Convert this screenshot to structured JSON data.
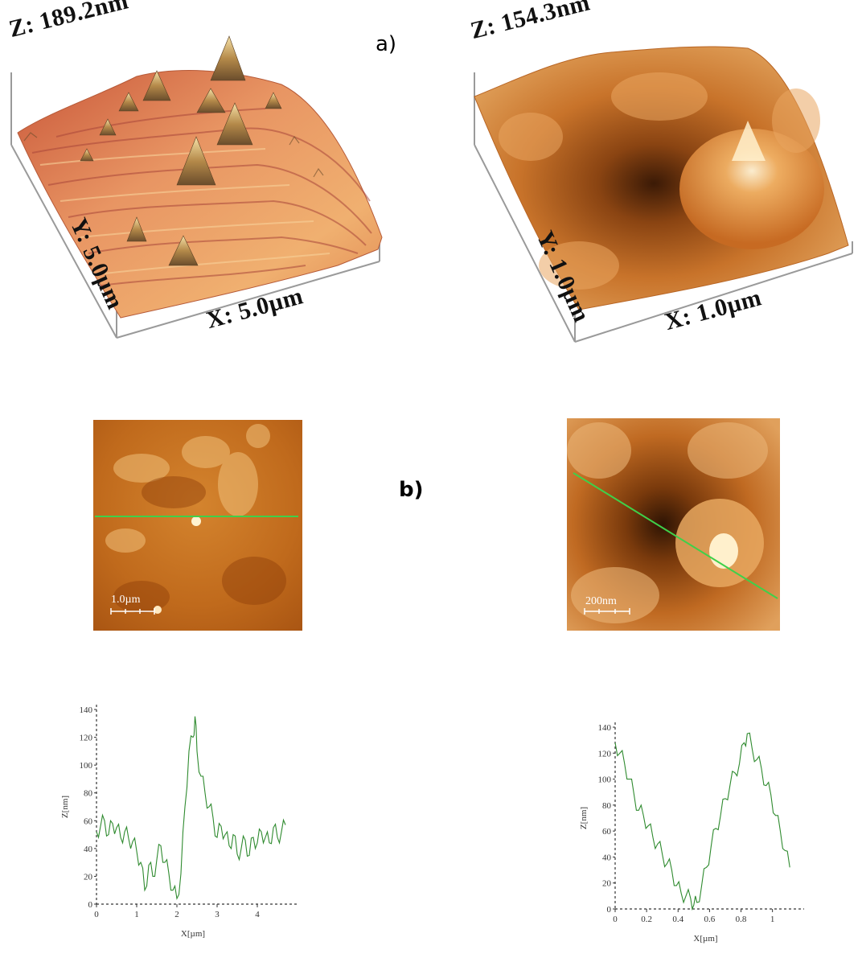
{
  "panel_a_label": "a)",
  "panel_b_label": "b)",
  "left_3d": {
    "z_label": "Z: 189.2nm",
    "y_label": "Y: 5.0µm",
    "x_label": "X: 5.0µm"
  },
  "right_3d": {
    "z_label": "Z: 154.3nm",
    "y_label": "Y: 1.0µm",
    "x_label": "X: 1.0µm"
  },
  "left_map": {
    "scale_label": "1.0µm",
    "line_color": "#3fd04a"
  },
  "right_map": {
    "scale_label": "200nm",
    "line_color": "#3fd04a"
  },
  "chart_data": [
    {
      "type": "line",
      "xlabel": "X[µm]",
      "ylabel": "Z[nm]",
      "xlim": [
        0,
        4.8
      ],
      "ylim": [
        0,
        140
      ],
      "xticks": [
        "0",
        "1",
        "2",
        "3",
        "4"
      ],
      "yticks": [
        "0",
        "20",
        "40",
        "60",
        "80",
        "100",
        "120",
        "140"
      ],
      "series": [
        {
          "color": "#2e8a2e",
          "x": [
            0,
            0.1,
            0.2,
            0.3,
            0.4,
            0.5,
            0.6,
            0.7,
            0.8,
            0.9,
            1.0,
            1.1,
            1.2,
            1.3,
            1.4,
            1.5,
            1.6,
            1.7,
            1.8,
            1.9,
            2.0,
            2.1,
            2.2,
            2.3,
            2.4,
            2.45,
            2.5,
            2.6,
            2.7,
            2.8,
            2.9,
            3.0,
            3.1,
            3.2,
            3.3,
            3.4,
            3.5,
            3.6,
            3.7,
            3.8,
            3.9,
            4.0,
            4.1,
            4.2,
            4.3,
            4.4,
            4.5,
            4.6,
            4.7
          ],
          "y": [
            52,
            56,
            60,
            50,
            58,
            55,
            48,
            52,
            47,
            45,
            38,
            30,
            10,
            28,
            20,
            32,
            42,
            30,
            22,
            10,
            4,
            22,
            70,
            110,
            120,
            135,
            110,
            92,
            80,
            70,
            62,
            48,
            56,
            50,
            42,
            50,
            36,
            40,
            46,
            35,
            48,
            44,
            52,
            48,
            44,
            55,
            48,
            52,
            57
          ]
        }
      ]
    },
    {
      "type": "line",
      "xlabel": "X[µm]",
      "ylabel": "Z[nm]",
      "xlim": [
        0,
        1.15
      ],
      "ylim": [
        0,
        140
      ],
      "xticks": [
        "0",
        "0.2",
        "0.4",
        "0.6",
        "0.8",
        "1"
      ],
      "yticks": [
        "0",
        "20",
        "40",
        "60",
        "80",
        "100",
        "120",
        "140"
      ],
      "series": [
        {
          "color": "#2e8a2e",
          "x": [
            0,
            0.03,
            0.06,
            0.09,
            0.12,
            0.15,
            0.18,
            0.21,
            0.24,
            0.27,
            0.3,
            0.33,
            0.36,
            0.39,
            0.42,
            0.45,
            0.48,
            0.5,
            0.52,
            0.55,
            0.58,
            0.61,
            0.64,
            0.67,
            0.7,
            0.73,
            0.76,
            0.79,
            0.82,
            0.84,
            0.87,
            0.9,
            0.93,
            0.96,
            0.99,
            1.02,
            1.05,
            1.08,
            1.11
          ],
          "y": [
            128,
            120,
            112,
            100,
            88,
            76,
            72,
            64,
            55,
            50,
            42,
            35,
            30,
            18,
            12,
            10,
            8,
            3,
            5,
            18,
            32,
            48,
            62,
            72,
            85,
            95,
            105,
            112,
            128,
            135,
            124,
            115,
            108,
            95,
            88,
            72,
            60,
            45,
            32
          ]
        }
      ]
    }
  ]
}
